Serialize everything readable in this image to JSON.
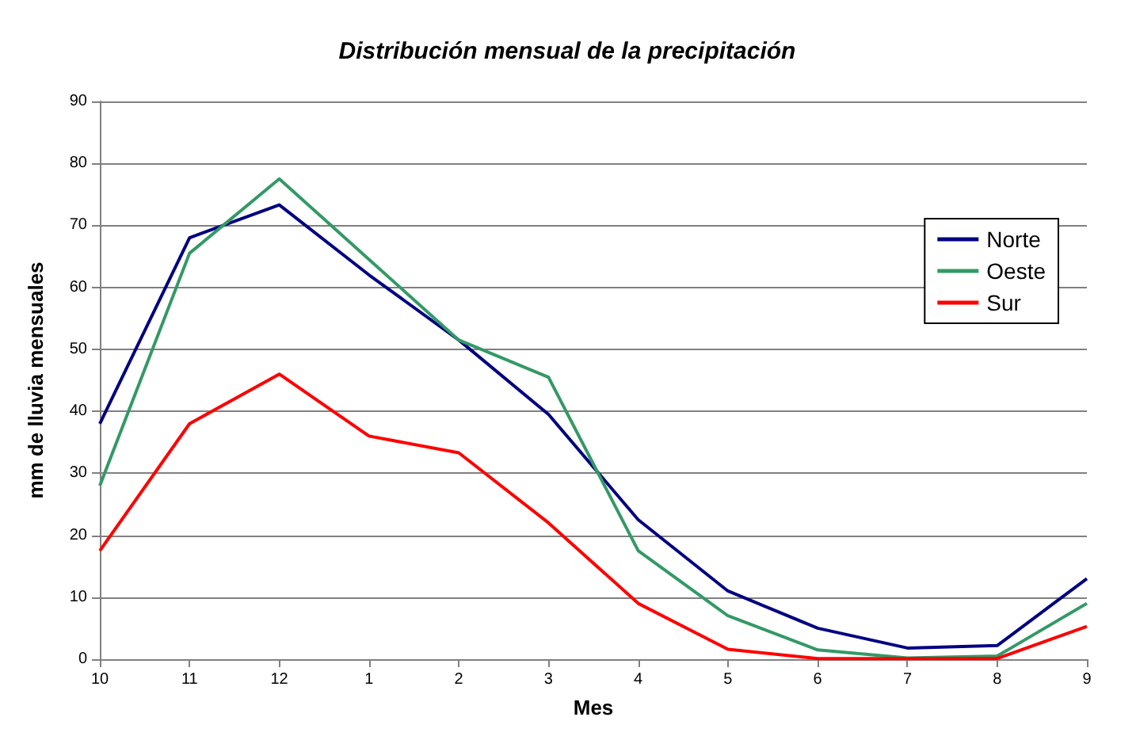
{
  "chart_data": {
    "type": "line",
    "title": "Distribución mensual de la precipitación",
    "xlabel": "Mes",
    "ylabel": "mm de lluvia mensuales",
    "categories": [
      "10",
      "11",
      "12",
      "1",
      "2",
      "3",
      "4",
      "5",
      "6",
      "7",
      "8",
      "9"
    ],
    "series": [
      {
        "name": "Norte",
        "color": "#000080",
        "values": [
          38,
          68,
          73.3,
          62,
          51.5,
          39.5,
          22.5,
          11,
          5,
          1.8,
          2.2,
          13
        ]
      },
      {
        "name": "Oeste",
        "color": "#339966",
        "values": [
          28,
          65.5,
          77.5,
          64.5,
          51.5,
          45.5,
          17.5,
          7,
          1.5,
          0.2,
          0.5,
          9
        ]
      },
      {
        "name": "Sur",
        "color": "#ff0000",
        "values": [
          17.5,
          38,
          46,
          36,
          33.3,
          22,
          9,
          1.6,
          0.1,
          0.1,
          0.1,
          5.3
        ]
      }
    ],
    "ylim": [
      0,
      90
    ],
    "yticks": [
      0,
      10,
      20,
      30,
      40,
      50,
      60,
      70,
      80,
      90
    ],
    "grid": "y",
    "legend": "right",
    "marker": "none",
    "line_style": "solid"
  }
}
